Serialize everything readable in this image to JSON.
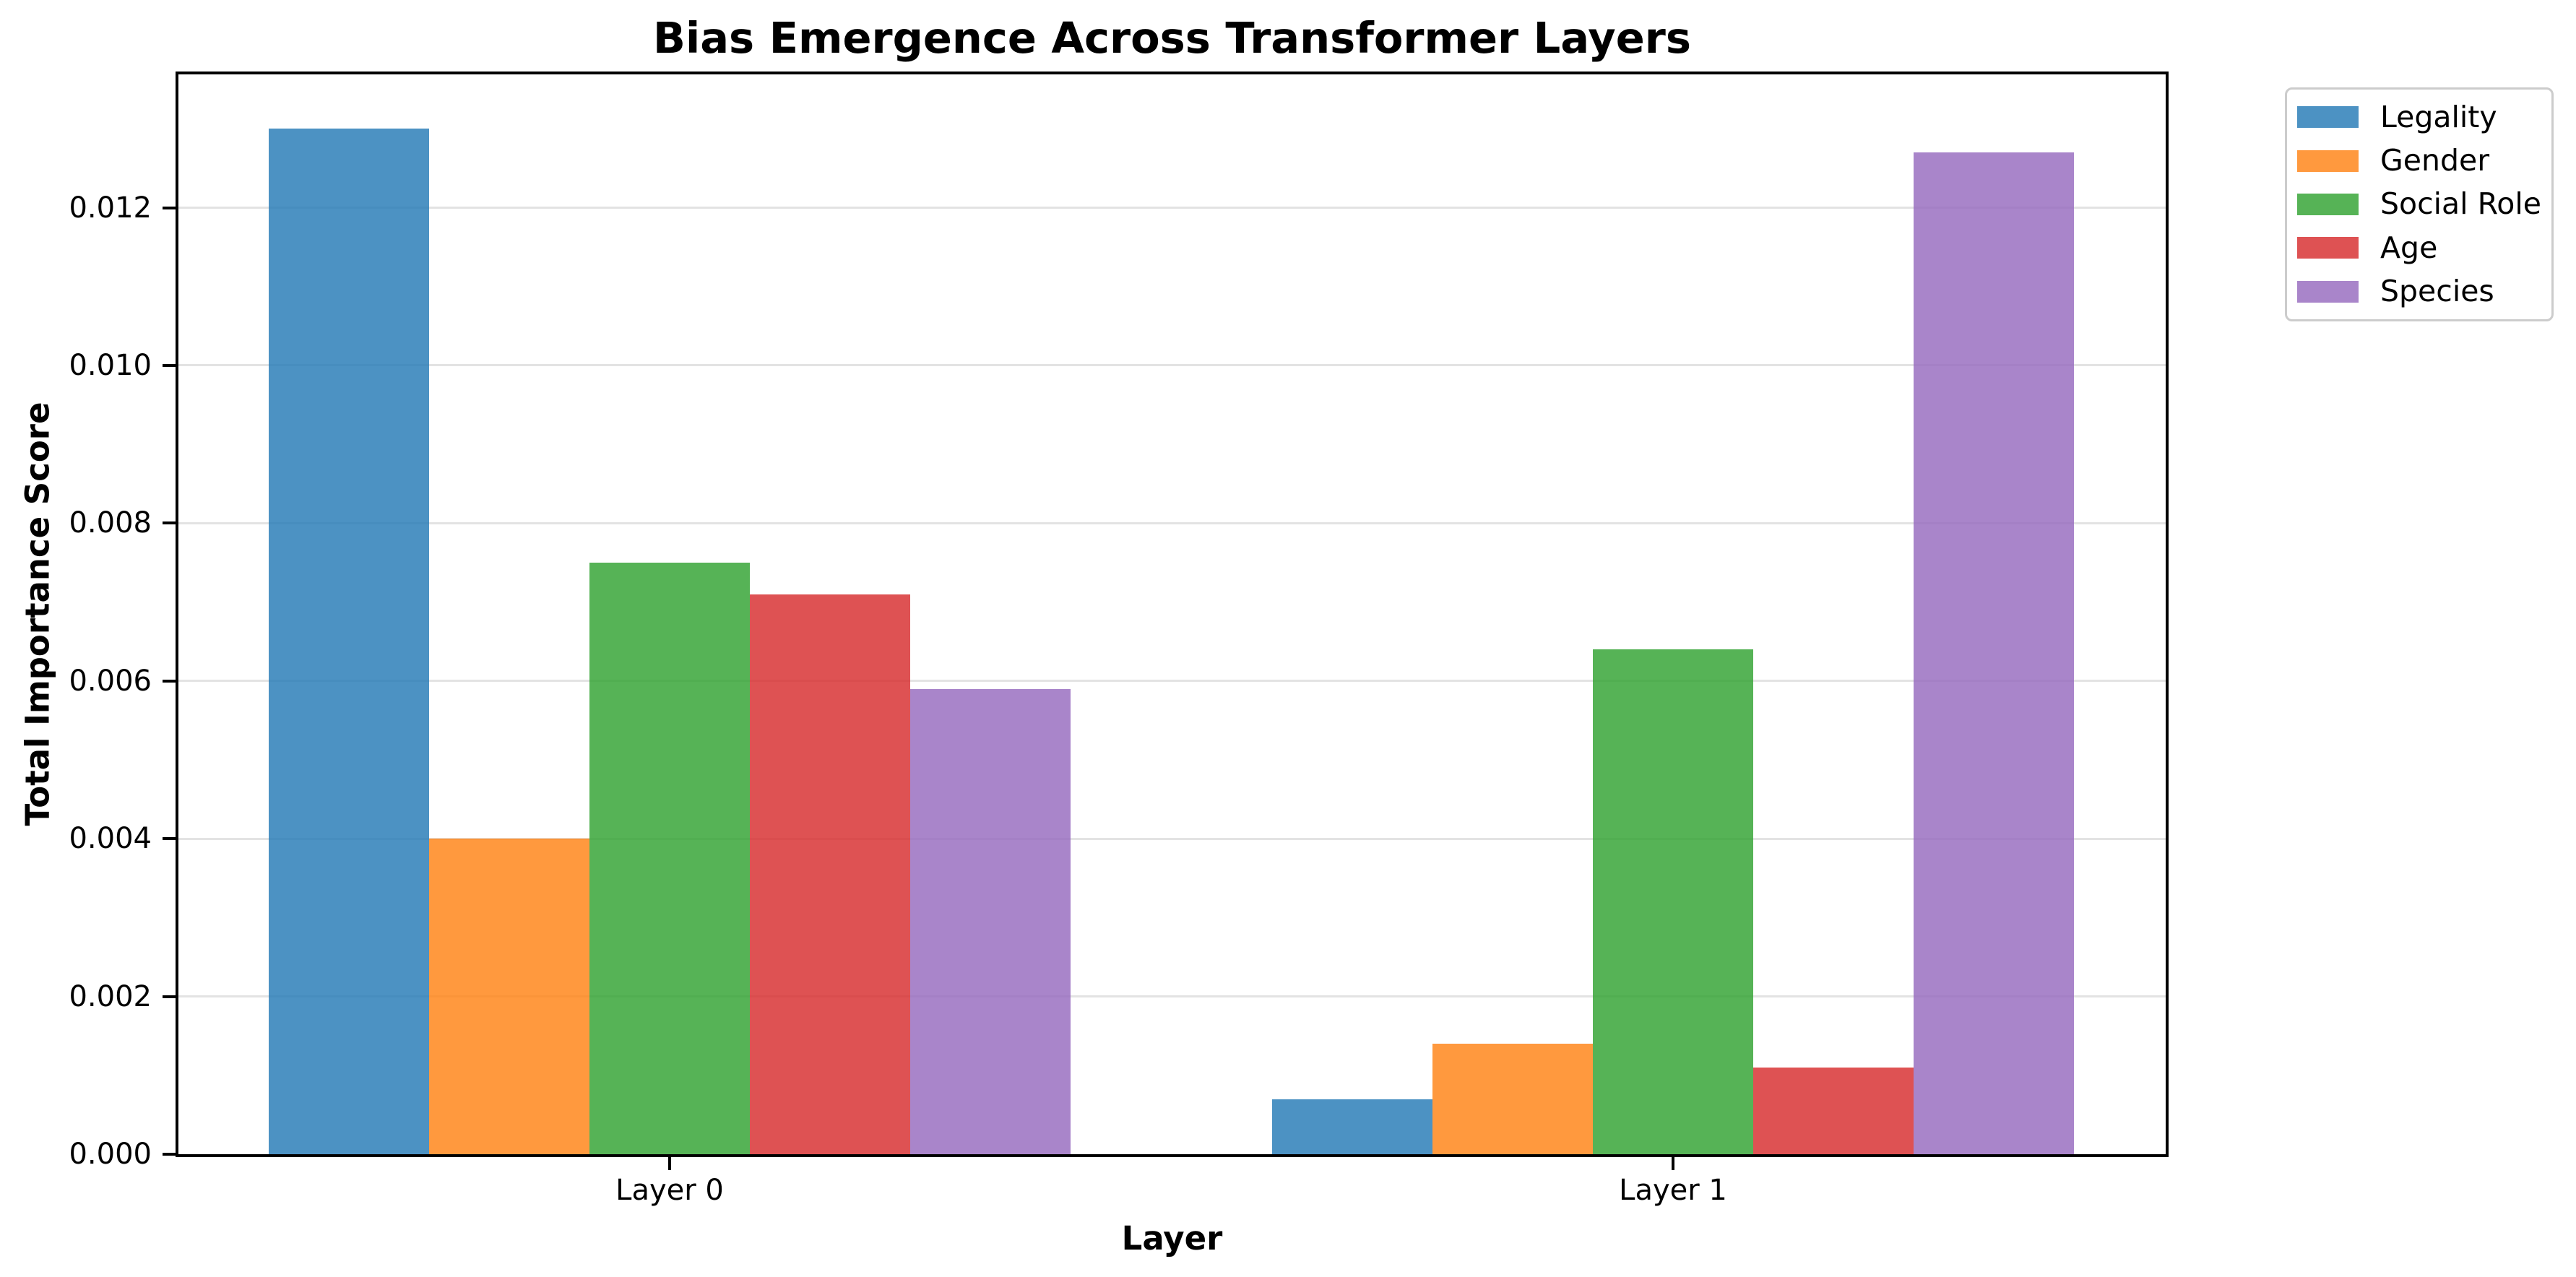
{
  "chart_data": {
    "type": "bar",
    "title": "Bias Emergence Across Transformer Layers",
    "xlabel": "Layer",
    "ylabel": "Total Importance Score",
    "categories": [
      "Layer 0",
      "Layer 1"
    ],
    "series": [
      {
        "name": "Legality",
        "color": "#1f77b4",
        "values": [
          0.013,
          0.0007
        ]
      },
      {
        "name": "Gender",
        "color": "#ff7f0e",
        "values": [
          0.004,
          0.0014
        ]
      },
      {
        "name": "Social Role",
        "color": "#2ca02c",
        "values": [
          0.0075,
          0.0064
        ]
      },
      {
        "name": "Age",
        "color": "#d62728",
        "values": [
          0.0071,
          0.0011
        ]
      },
      {
        "name": "Species",
        "color": "#9467bd",
        "values": [
          0.0059,
          0.0127
        ]
      }
    ],
    "bar_alpha": 0.8,
    "ylim": [
      0,
      0.01369
    ],
    "yticks": [
      0.0,
      0.002,
      0.004,
      0.006,
      0.008,
      0.01,
      0.012
    ],
    "ytick_format": "3dp",
    "grid": "horizontal",
    "grid_color": "#b0b0b0",
    "grid_alpha": 0.35,
    "legend_position": "upper-right-outside",
    "legend_labels": [
      "Legality",
      "Gender",
      "Social Role",
      "Age",
      "Species"
    ]
  }
}
